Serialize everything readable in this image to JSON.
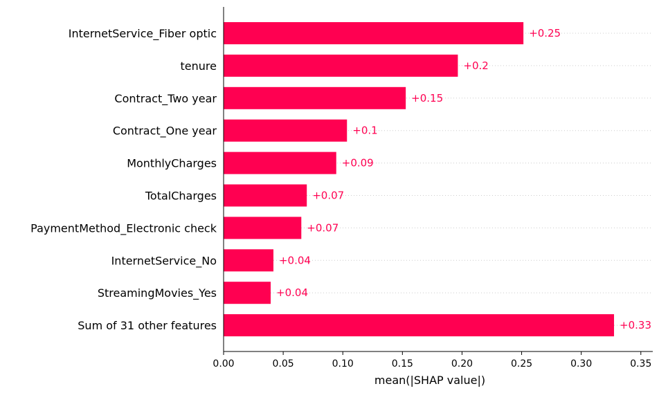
{
  "colors": {
    "bar": "#ff0051",
    "axis": "#000000",
    "grid": "#cccccc"
  },
  "chart_data": {
    "type": "bar",
    "orientation": "horizontal",
    "title": "",
    "xlabel": "mean(|SHAP value|)",
    "ylabel": "",
    "xlim": [
      0,
      0.36
    ],
    "xticks": [
      "0.00",
      "0.05",
      "0.10",
      "0.15",
      "0.20",
      "0.25",
      "0.30",
      "0.35"
    ],
    "xtick_values": [
      0,
      0.05,
      0.1,
      0.15,
      0.2,
      0.25,
      0.3,
      0.35
    ],
    "grid": "dotted horizontal guide lines per row",
    "categories": [
      "InternetService_Fiber optic",
      "tenure",
      "Contract_Two year",
      "Contract_One year",
      "MonthlyCharges",
      "TotalCharges",
      "PaymentMethod_Electronic check",
      "InternetService_No",
      "StreamingMovies_Yes",
      "Sum of 31 other features"
    ],
    "values": [
      0.2515,
      0.1965,
      0.1528,
      0.1035,
      0.0945,
      0.0698,
      0.0652,
      0.0418,
      0.0395,
      0.3275
    ],
    "data_labels": [
      "+0.25",
      "+0.2",
      "+0.15",
      "+0.1",
      "+0.09",
      "+0.07",
      "+0.07",
      "+0.04",
      "+0.04",
      "+0.33"
    ]
  }
}
